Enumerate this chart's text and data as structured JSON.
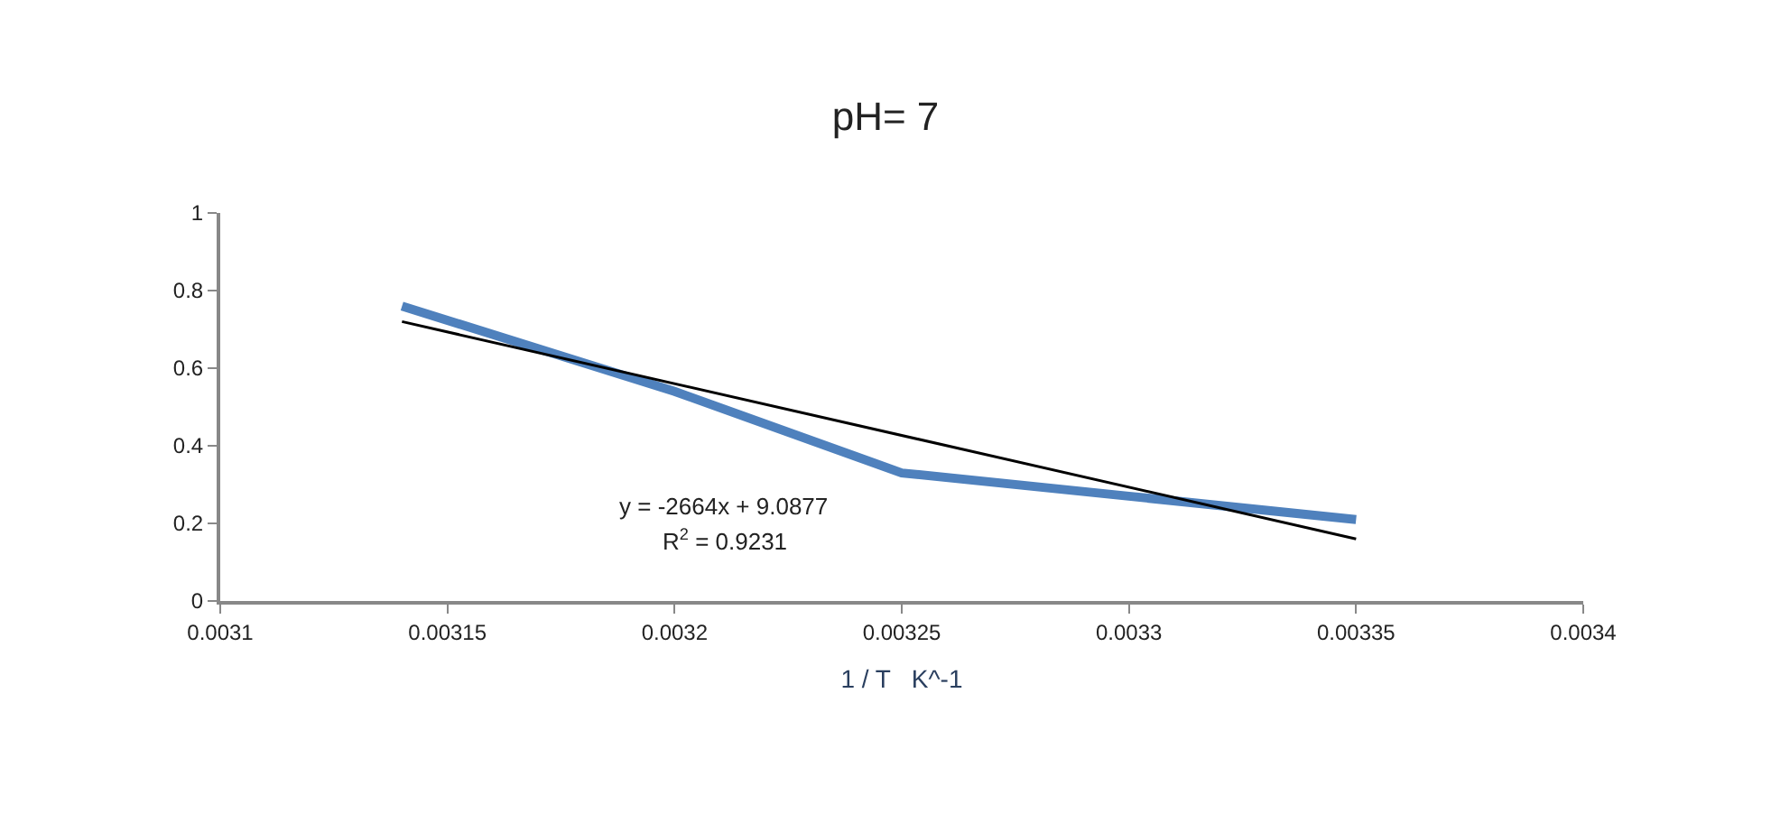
{
  "chart_data": {
    "type": "line",
    "title": "pH= 7",
    "xlabel": "1 / T   K^-1",
    "series": [
      {
        "color": "#4f81bd",
        "x": [
          0.00314,
          0.0032,
          0.00325,
          0.0033,
          0.00335
        ],
        "values": [
          0.76,
          0.54,
          0.33,
          0.27,
          0.21
        ]
      },
      {
        "type": "line",
        "color": "#000000",
        "x": [
          0.00314,
          0.00335
        ],
        "values": [
          0.72,
          0.16
        ]
      }
    ],
    "xlim": [
      0.0031,
      0.0034
    ],
    "xticks": [
      0.0031,
      0.00315,
      0.0032,
      0.00325,
      0.0033,
      0.00335,
      0.0034
    ],
    "ylim": [
      0,
      1
    ],
    "yticks": [
      0,
      0.2,
      0.4,
      0.6,
      0.8,
      1
    ],
    "annotations": [
      "y = -2664x + 9.0877",
      "R$^{2}$ = 0.9231"
    ],
    "marker": "none"
  }
}
